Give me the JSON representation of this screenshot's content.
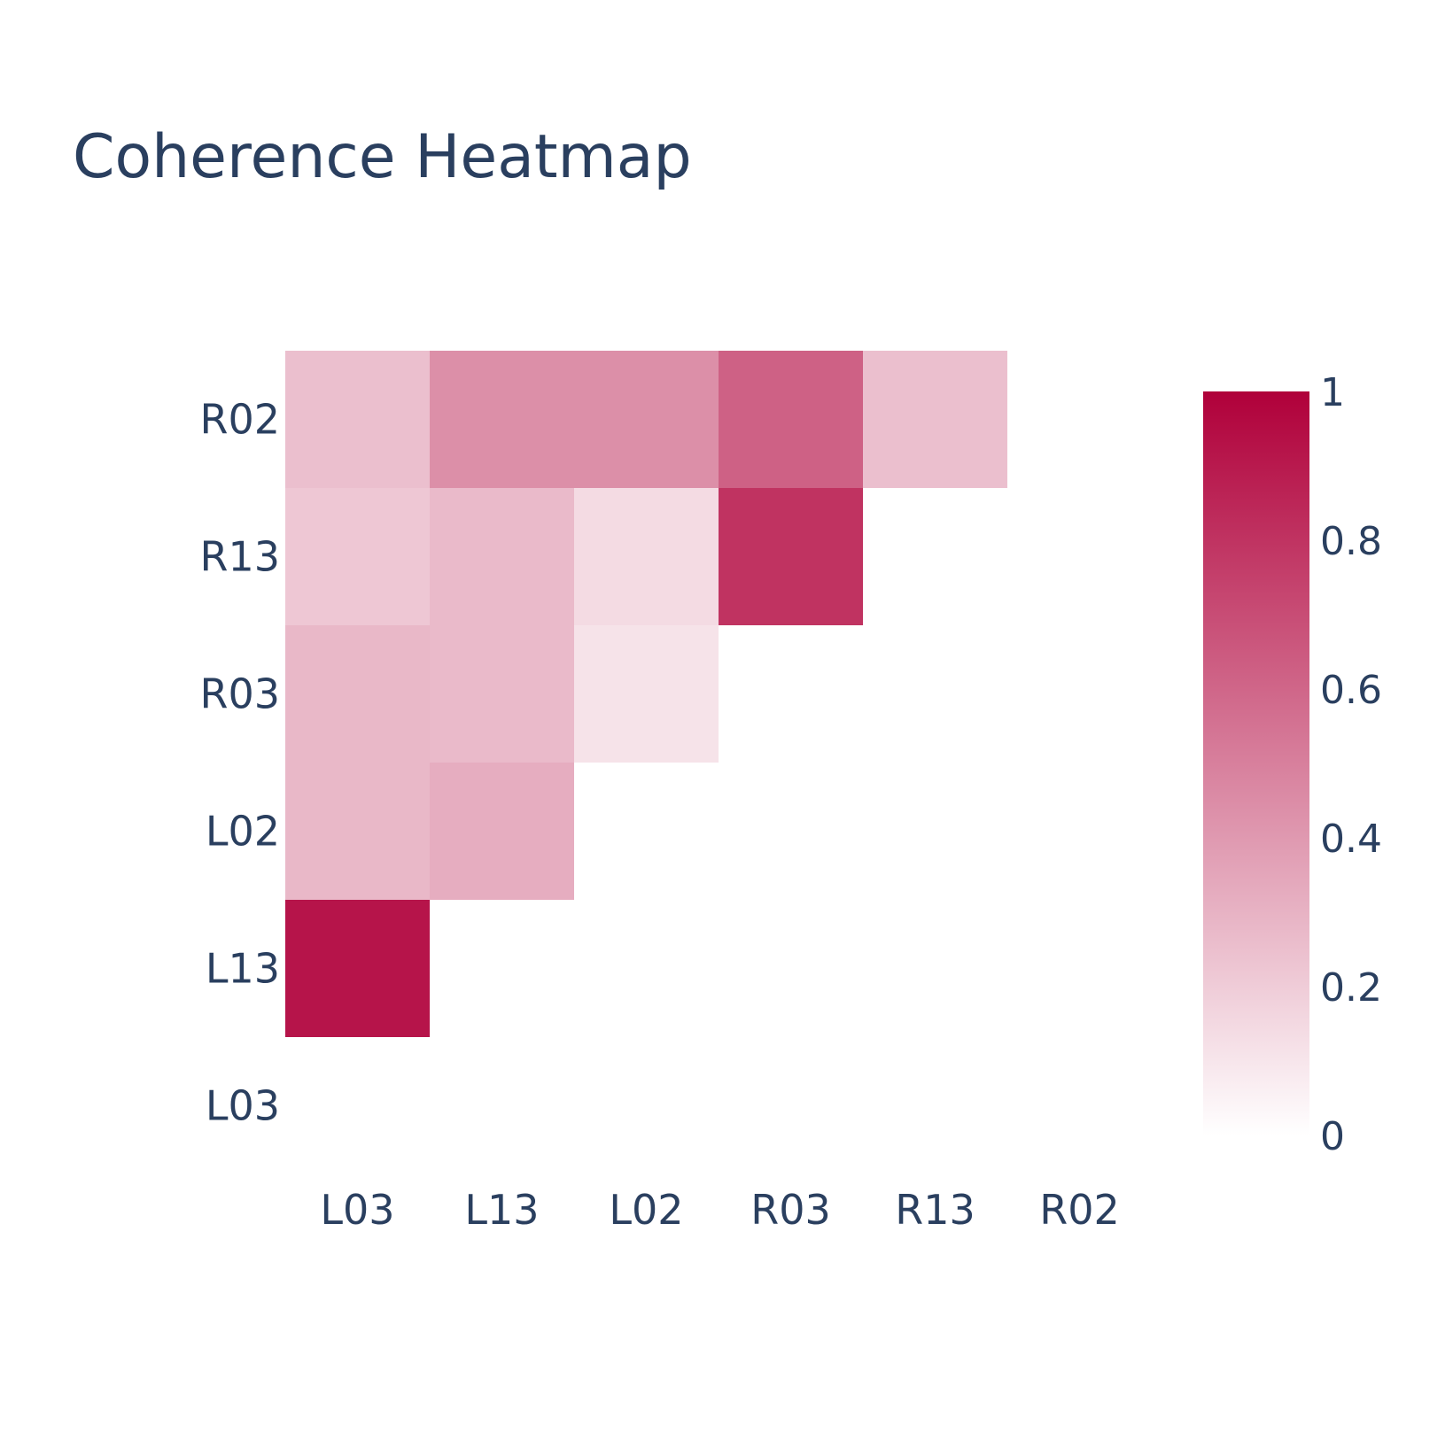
{
  "chart_data": {
    "type": "heatmap",
    "title": "Coherence Heatmap",
    "x_categories": [
      "L03",
      "L13",
      "L02",
      "R03",
      "R13",
      "R02"
    ],
    "y_categories": [
      "L03",
      "L13",
      "L02",
      "R03",
      "R13",
      "R02"
    ],
    "z": [
      [
        null,
        null,
        null,
        null,
        null,
        null
      ],
      [
        0.92,
        null,
        null,
        null,
        null,
        null
      ],
      [
        0.28,
        0.32,
        null,
        null,
        null,
        null
      ],
      [
        0.28,
        0.27,
        0.11,
        null,
        null,
        null
      ],
      [
        0.22,
        0.27,
        0.14,
        0.8,
        null,
        null
      ],
      [
        0.25,
        0.44,
        0.44,
        0.62,
        0.25,
        null
      ]
    ],
    "zmin": 0,
    "zmax": 1,
    "colorscale": [
      "#ffffff",
      "#b0003a"
    ],
    "colorbar": {
      "ticks": [
        "0",
        "0.2",
        "0.4",
        "0.6",
        "0.8",
        "1"
      ],
      "tick_values": [
        0,
        0.2,
        0.4,
        0.6,
        0.8,
        1
      ]
    },
    "text_color": "#2a3f5f"
  }
}
